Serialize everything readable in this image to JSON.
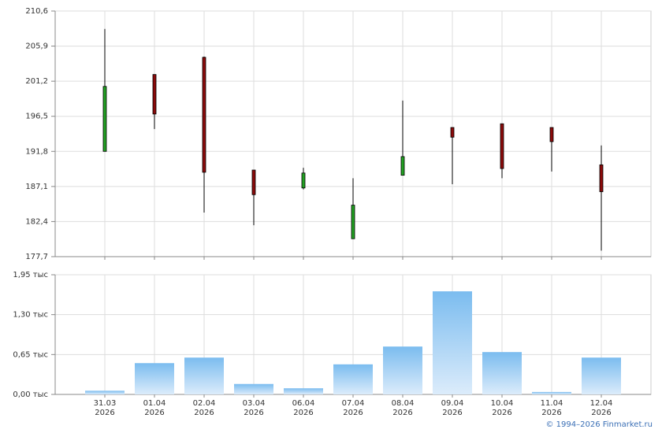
{
  "chart_data": [
    {
      "type": "candlestick",
      "categories": [
        "31.03 2026",
        "01.04 2026",
        "02.04 2026",
        "03.04 2026",
        "06.04 2026",
        "07.04 2026",
        "08.04 2026",
        "09.04 2026",
        "10.04 2026",
        "11.04 2026",
        "12.04 2026"
      ],
      "open": [
        191.8,
        202.1,
        204.4,
        189.3,
        186.9,
        180.1,
        188.6,
        195.0,
        195.5,
        195.0,
        190.0
      ],
      "high": [
        208.2,
        202.1,
        204.5,
        189.3,
        189.6,
        188.2,
        198.6,
        195.0,
        195.5,
        195.0,
        192.6
      ],
      "low": [
        191.8,
        194.8,
        183.6,
        181.9,
        186.7,
        180.1,
        188.6,
        187.4,
        188.2,
        189.1,
        178.5
      ],
      "close": [
        200.5,
        196.8,
        189.0,
        186.0,
        188.9,
        184.6,
        191.1,
        193.7,
        189.5,
        193.1,
        186.4
      ],
      "up_color": "#22a022",
      "down_color": "#8b0a0a",
      "ylim": [
        177.7,
        210.6
      ],
      "yticks": [
        {
          "value": 177.7,
          "label": "177,7"
        },
        {
          "value": 182.4,
          "label": "182,4"
        },
        {
          "value": 187.1,
          "label": "187,1"
        },
        {
          "value": 191.8,
          "label": "191,8"
        },
        {
          "value": 196.5,
          "label": "196,5"
        },
        {
          "value": 201.2,
          "label": "201,2"
        },
        {
          "value": 205.9,
          "label": "205,9"
        },
        {
          "value": 210.6,
          "label": "210,6"
        }
      ],
      "grid": true
    },
    {
      "type": "bar",
      "categories": [
        "31.03 2026",
        "01.04 2026",
        "02.04 2026",
        "03.04 2026",
        "06.04 2026",
        "07.04 2026",
        "08.04 2026",
        "09.04 2026",
        "10.04 2026",
        "11.04 2026",
        "12.04 2026"
      ],
      "values": [
        0.06,
        0.51,
        0.6,
        0.17,
        0.1,
        0.49,
        0.78,
        1.68,
        0.69,
        0.04,
        0.6
      ],
      "color": "#7bbcef",
      "ylim": [
        0,
        1.95
      ],
      "yticks": [
        {
          "value": 0,
          "label": "0,00 тыс"
        },
        {
          "value": 0.65,
          "label": "0,65 тыс"
        },
        {
          "value": 1.3,
          "label": "1,30 тыс"
        },
        {
          "value": 1.95,
          "label": "1,95 тыс"
        }
      ],
      "grid": true
    }
  ],
  "footer": "© 1994–2026 Finmarket.ru"
}
